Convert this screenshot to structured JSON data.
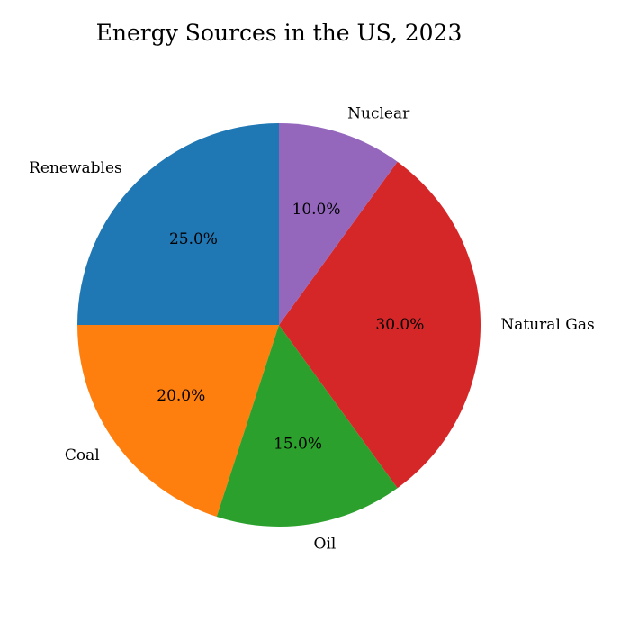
{
  "chart_data": {
    "type": "pie",
    "title": "Energy Sources in the US, 2023",
    "start_angle_deg": 90,
    "direction": "counterclockwise",
    "slices": [
      {
        "label": "Renewables",
        "value": 25.0,
        "pct_label": "25.0%",
        "color": "#1f77b4"
      },
      {
        "label": "Coal",
        "value": 20.0,
        "pct_label": "20.0%",
        "color": "#ff7f0e"
      },
      {
        "label": "Oil",
        "value": 15.0,
        "pct_label": "15.0%",
        "color": "#2ca02c"
      },
      {
        "label": "Natural Gas",
        "value": 30.0,
        "pct_label": "30.0%",
        "color": "#d62728"
      },
      {
        "label": "Nuclear",
        "value": 10.0,
        "pct_label": "10.0%",
        "color": "#9467bd"
      }
    ]
  }
}
